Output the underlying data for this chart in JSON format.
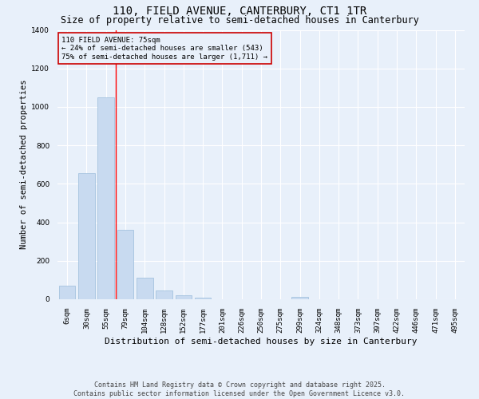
{
  "title": "110, FIELD AVENUE, CANTERBURY, CT1 1TR",
  "subtitle": "Size of property relative to semi-detached houses in Canterbury",
  "xlabel": "Distribution of semi-detached houses by size in Canterbury",
  "ylabel": "Number of semi-detached properties",
  "categories": [
    "6sqm",
    "30sqm",
    "55sqm",
    "79sqm",
    "104sqm",
    "128sqm",
    "152sqm",
    "177sqm",
    "201sqm",
    "226sqm",
    "250sqm",
    "275sqm",
    "299sqm",
    "324sqm",
    "348sqm",
    "373sqm",
    "397sqm",
    "422sqm",
    "446sqm",
    "471sqm",
    "495sqm"
  ],
  "values": [
    70,
    655,
    1050,
    360,
    110,
    45,
    20,
    10,
    0,
    0,
    0,
    0,
    12,
    0,
    0,
    0,
    0,
    0,
    0,
    0,
    0
  ],
  "bar_color": "#c8daf0",
  "bar_edge_color": "#9bbcdb",
  "ylim": [
    0,
    1400
  ],
  "yticks": [
    0,
    200,
    400,
    600,
    800,
    1000,
    1200,
    1400
  ],
  "property_line_x": 2.5,
  "annotation_line1": "110 FIELD AVENUE: 75sqm",
  "annotation_line2": "← 24% of semi-detached houses are smaller (543)",
  "annotation_line3": "75% of semi-detached houses are larger (1,711) →",
  "annotation_box_color": "#cc0000",
  "footer_line1": "Contains HM Land Registry data © Crown copyright and database right 2025.",
  "footer_line2": "Contains public sector information licensed under the Open Government Licence v3.0.",
  "bg_color": "#e8f0fa",
  "grid_color": "#ffffff",
  "title_fontsize": 10,
  "subtitle_fontsize": 8.5,
  "ylabel_fontsize": 7.5,
  "xlabel_fontsize": 8,
  "tick_fontsize": 6.5,
  "ann_fontsize": 6.5,
  "footer_fontsize": 6
}
